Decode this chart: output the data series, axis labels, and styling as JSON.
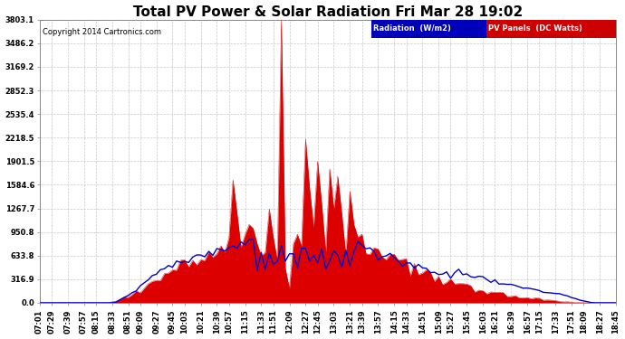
{
  "title": "Total PV Power & Solar Radiation Fri Mar 28 19:02",
  "copyright": "Copyright 2014 Cartronics.com",
  "legend_radiation_label": "Radiation  (W/m2)",
  "legend_pv_label": "PV Panels  (DC Watts)",
  "legend_radiation_bg": "#0000bb",
  "legend_pv_bg": "#cc0000",
  "ymax": 3803.1,
  "yticks": [
    0.0,
    316.9,
    633.8,
    950.8,
    1267.7,
    1584.6,
    1901.5,
    2218.5,
    2535.4,
    2852.3,
    3169.2,
    3486.2,
    3803.1
  ],
  "background_color": "#ffffff",
  "plot_bg_color": "#ffffff",
  "grid_color": "#bbbbbb",
  "title_fontsize": 11,
  "tick_fontsize": 6,
  "x_tick_labels": [
    "07:01",
    "07:29",
    "07:39",
    "07:57",
    "08:15",
    "08:33",
    "08:51",
    "09:09",
    "09:27",
    "09:45",
    "10:03",
    "10:21",
    "10:39",
    "10:57",
    "11:15",
    "11:33",
    "11:51",
    "12:09",
    "12:27",
    "12:45",
    "13:03",
    "13:21",
    "13:39",
    "13:57",
    "14:15",
    "14:33",
    "14:51",
    "15:09",
    "15:27",
    "15:45",
    "16:03",
    "16:21",
    "16:39",
    "16:57",
    "17:15",
    "17:33",
    "17:51",
    "18:09",
    "18:27",
    "18:45"
  ],
  "red_color": "#dd0000",
  "blue_color": "#0000cc",
  "n_points": 144
}
